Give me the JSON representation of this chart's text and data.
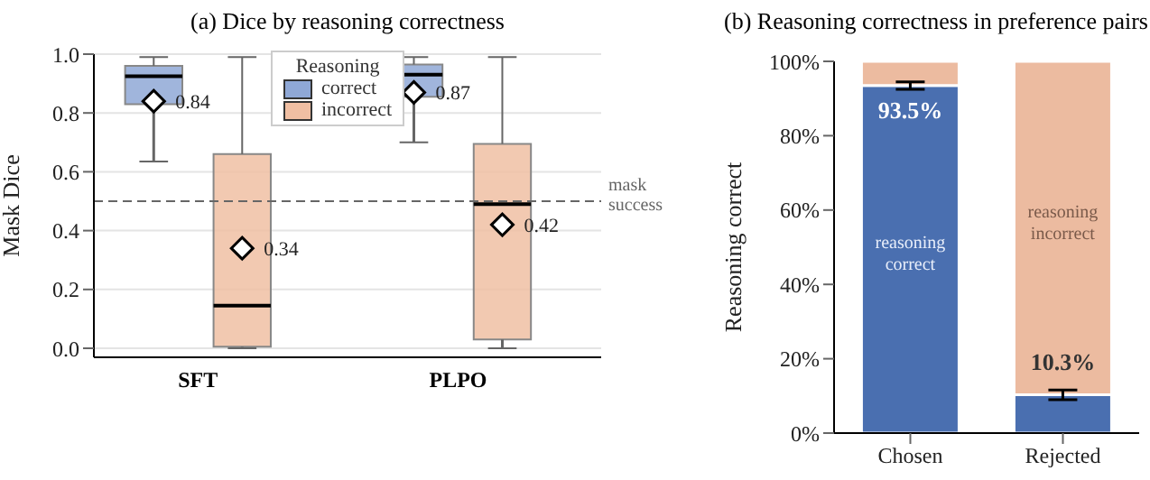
{
  "chart_data": [
    {
      "type": "box",
      "title": "(a) Dice by reasoning correctness",
      "ylabel": "Mask Dice",
      "categories": [
        "SFT",
        "PLPO"
      ],
      "series": [
        {
          "name": "correct",
          "color": "#8fa8d6",
          "boxes": [
            {
              "low": 0.635,
              "q1": 0.83,
              "median": 0.925,
              "q3": 0.96,
              "high": 0.99,
              "mean": 0.84
            },
            {
              "low": 0.7,
              "q1": 0.855,
              "median": 0.93,
              "q3": 0.965,
              "high": 0.99,
              "mean": 0.87
            }
          ]
        },
        {
          "name": "incorrect",
          "color": "#f0bfa3",
          "boxes": [
            {
              "low": 0.0,
              "q1": 0.005,
              "median": 0.145,
              "q3": 0.66,
              "high": 0.99,
              "mean": 0.34
            },
            {
              "low": 0.0,
              "q1": 0.03,
              "median": 0.49,
              "q3": 0.695,
              "high": 0.99,
              "mean": 0.42
            }
          ]
        }
      ],
      "ylim": [
        0,
        1
      ],
      "yticks": [
        {
          "value": 0,
          "label": "0.0"
        },
        0.2,
        0.4,
        0.6,
        0.8,
        {
          "value": 1,
          "label": "1.0"
        }
      ],
      "grid": "y",
      "legend": "top",
      "legend_title": "Reasoning",
      "ref_lines": [
        {
          "axis": "y",
          "value": 0.5,
          "label": "mask success",
          "color": "#666666",
          "line_style": "dashed"
        }
      ],
      "annotations": [
        "0.84",
        "0.34",
        "0.87",
        "0.42"
      ],
      "marker": "diamond"
    },
    {
      "type": "bar",
      "title": "(b) Reasoning correctness in preference pairs",
      "ylabel": "Reasoning correct",
      "categories": [
        "Chosen",
        "Rejected"
      ],
      "stacked": true,
      "series": [
        {
          "name": "reasoning correct",
          "color": "#4a6fb0",
          "values": [
            93.5,
            10.3
          ],
          "errors": [
            [
              92.5,
              94.5
            ],
            [
              9.0,
              11.6
            ]
          ],
          "value_labels": [
            "93.5%",
            "10.3%"
          ]
        },
        {
          "name": "reasoning incorrect",
          "color": "#ecbba0",
          "values": [
            6.5,
            89.7
          ]
        }
      ],
      "ylim": [
        0,
        100
      ],
      "yticks": [
        {
          "value": 0,
          "label": "0%"
        },
        {
          "value": 20,
          "label": "20%"
        },
        {
          "value": 40,
          "label": "40%"
        },
        {
          "value": 60,
          "label": "60%"
        },
        {
          "value": 80,
          "label": "80%"
        },
        {
          "value": 100,
          "label": "100%"
        }
      ],
      "grid": false,
      "legend": false
    }
  ]
}
